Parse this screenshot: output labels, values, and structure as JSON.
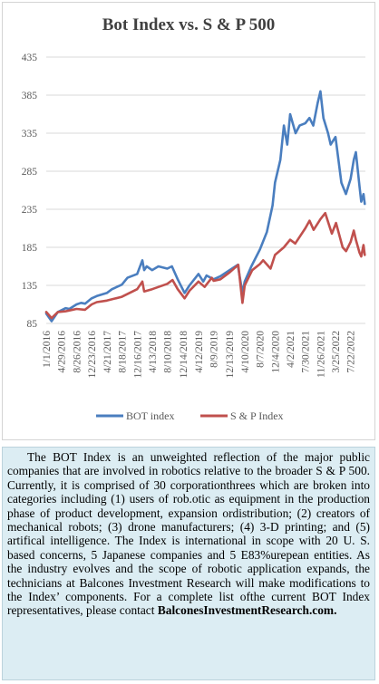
{
  "chart_data": {
    "type": "line",
    "title": "Bot Index vs. S & P 500",
    "ylim": [
      85,
      435
    ],
    "yticks": [
      85,
      135,
      185,
      235,
      285,
      335,
      385,
      435
    ],
    "x_tick_labels": [
      "1/1/2016",
      "4/29/2016",
      "8/26/2016",
      "12/23/2016",
      "4/21/2017",
      "8/18/2017",
      "12/16/2017",
      "4/13/2018",
      "8/10/2018",
      "12/14/2018",
      "4/12/2019",
      "8/9/2019",
      "12/13/2019",
      "4/10/2020",
      "8/7/2020",
      "12/4/2020",
      "4/2/2021",
      "7/30/2021",
      "11/26/2021",
      "3/25/2022",
      "7/22/2022"
    ],
    "legend_position": "bottom",
    "grid": "horizontal",
    "series": [
      {
        "name": "BOT index",
        "color": "#4a7ebf",
        "points": [
          [
            "1/1/2016",
            98
          ],
          [
            "2/12/2016",
            88
          ],
          [
            "4/1/2016",
            100
          ],
          [
            "6/1/2016",
            105
          ],
          [
            "7/1/2016",
            104
          ],
          [
            "8/26/2016",
            110
          ],
          [
            "10/1/2016",
            112
          ],
          [
            "11/1/2016",
            111
          ],
          [
            "12/23/2016",
            118
          ],
          [
            "2/1/2017",
            121
          ],
          [
            "4/21/2017",
            125
          ],
          [
            "6/1/2017",
            130
          ],
          [
            "8/18/2017",
            136
          ],
          [
            "10/1/2017",
            145
          ],
          [
            "12/16/2017",
            150
          ],
          [
            "1/26/2018",
            168
          ],
          [
            "2/9/2018",
            155
          ],
          [
            "3/1/2018",
            160
          ],
          [
            "4/13/2018",
            155
          ],
          [
            "6/1/2018",
            160
          ],
          [
            "8/10/2018",
            157
          ],
          [
            "9/15/2018",
            160
          ],
          [
            "10/31/2018",
            143
          ],
          [
            "12/24/2018",
            125
          ],
          [
            "2/1/2019",
            135
          ],
          [
            "4/12/2019",
            150
          ],
          [
            "5/20/2019",
            140
          ],
          [
            "6/15/2019",
            148
          ],
          [
            "8/9/2019",
            143
          ],
          [
            "10/1/2019",
            147
          ],
          [
            "12/13/2019",
            155
          ],
          [
            "2/15/2020",
            162
          ],
          [
            "3/23/2020",
            125
          ],
          [
            "4/10/2020",
            140
          ],
          [
            "6/1/2020",
            160
          ],
          [
            "8/7/2020",
            182
          ],
          [
            "10/1/2020",
            205
          ],
          [
            "11/15/2020",
            240
          ],
          [
            "12/4/2020",
            270
          ],
          [
            "1/15/2021",
            300
          ],
          [
            "2/12/2021",
            345
          ],
          [
            "3/10/2021",
            320
          ],
          [
            "4/2/2021",
            360
          ],
          [
            "5/15/2021",
            335
          ],
          [
            "6/15/2021",
            345
          ],
          [
            "7/30/2021",
            348
          ],
          [
            "9/1/2021",
            355
          ],
          [
            "10/1/2021",
            345
          ],
          [
            "11/5/2021",
            375
          ],
          [
            "11/26/2021",
            390
          ],
          [
            "12/20/2021",
            355
          ],
          [
            "1/25/2022",
            335
          ],
          [
            "2/15/2022",
            320
          ],
          [
            "3/25/2022",
            330
          ],
          [
            "5/10/2022",
            270
          ],
          [
            "6/15/2022",
            255
          ],
          [
            "7/22/2022",
            275
          ],
          [
            "8/16/2022",
            300
          ],
          [
            "9/1/2022",
            310
          ],
          [
            "9/30/2022",
            265
          ],
          [
            "10/13/2022",
            245
          ],
          [
            "10/31/2022",
            255
          ],
          [
            "11/10/2022",
            242
          ]
        ]
      },
      {
        "name": "S & P Index",
        "color": "#c0504d",
        "points": [
          [
            "1/1/2016",
            100
          ],
          [
            "2/12/2016",
            92
          ],
          [
            "4/1/2016",
            100
          ],
          [
            "6/1/2016",
            101
          ],
          [
            "7/1/2016",
            102
          ],
          [
            "8/26/2016",
            104
          ],
          [
            "11/1/2016",
            103
          ],
          [
            "12/23/2016",
            110
          ],
          [
            "2/1/2017",
            113
          ],
          [
            "4/21/2017",
            115
          ],
          [
            "8/18/2017",
            120
          ],
          [
            "12/16/2017",
            130
          ],
          [
            "1/26/2018",
            140
          ],
          [
            "2/9/2018",
            127
          ],
          [
            "4/13/2018",
            130
          ],
          [
            "8/10/2018",
            137
          ],
          [
            "9/20/2018",
            142
          ],
          [
            "10/31/2018",
            130
          ],
          [
            "12/24/2018",
            118
          ],
          [
            "2/1/2019",
            128
          ],
          [
            "4/12/2019",
            140
          ],
          [
            "5/31/2019",
            133
          ],
          [
            "7/26/2019",
            145
          ],
          [
            "8/9/2019",
            141
          ],
          [
            "10/1/2019",
            143
          ],
          [
            "12/13/2019",
            152
          ],
          [
            "2/19/2020",
            162
          ],
          [
            "3/23/2020",
            112
          ],
          [
            "4/10/2020",
            135
          ],
          [
            "6/8/2020",
            155
          ],
          [
            "8/7/2020",
            163
          ],
          [
            "9/2/2020",
            168
          ],
          [
            "10/30/2020",
            157
          ],
          [
            "12/4/2020",
            175
          ],
          [
            "2/12/2021",
            185
          ],
          [
            "4/2/2021",
            195
          ],
          [
            "5/12/2021",
            190
          ],
          [
            "7/30/2021",
            210
          ],
          [
            "9/2/2021",
            220
          ],
          [
            "10/4/2021",
            208
          ],
          [
            "11/26/2021",
            222
          ],
          [
            "1/3/2022",
            230
          ],
          [
            "2/24/2022",
            203
          ],
          [
            "3/29/2022",
            217
          ],
          [
            "5/20/2022",
            185
          ],
          [
            "6/16/2022",
            180
          ],
          [
            "7/22/2022",
            192
          ],
          [
            "8/16/2022",
            207
          ],
          [
            "9/1/2022",
            195
          ],
          [
            "9/30/2022",
            178
          ],
          [
            "10/13/2022",
            173
          ],
          [
            "10/31/2022",
            188
          ],
          [
            "11/10/2022",
            175
          ]
        ]
      }
    ]
  },
  "description": {
    "text": "The BOT Index is an unweighted reflection of the major public companies that are involved in robotics relative to the broader S & P 500. Currently, it is comprised of 30 corporationthrees which are broken into categories including (1) users of rob.otic as equipment in the production phase of product development, expansion ordistribution; (2) creators of mechanical robots; (3) drone manufacturers; (4) 3-D printing; and (5) artifical intelligence. The Index is international in scope with 20 U. S. based concerns, 5 Japanese companies and 5 E83%urepean entities. As the industry evolves and the scope of robotic application expands, the technicians at Balcones Investment Research will make modifications to the Index’ components. For a complete list ofthe current BOT Index representatives, please contact",
    "contact": "BalconesInvestmentResearch.com."
  }
}
